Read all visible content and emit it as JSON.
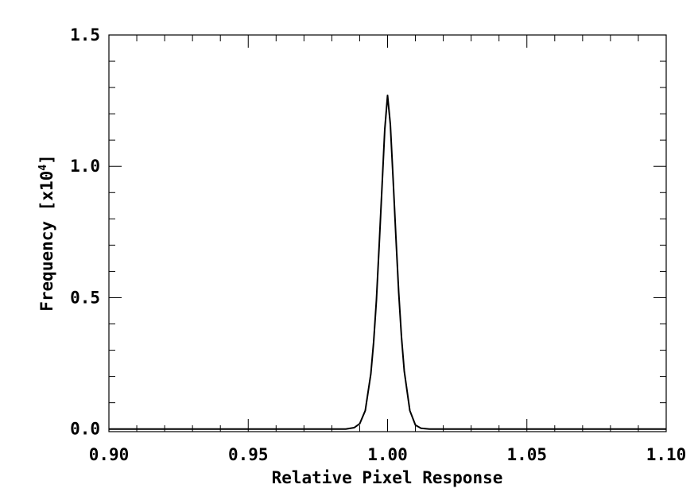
{
  "chart_data": {
    "type": "line",
    "xlabel": "Relative Pixel Response",
    "ylabel_main": "Frequency [x10",
    "ylabel_exp": "4",
    "ylabel_close": "]",
    "xlim": [
      0.9,
      1.1
    ],
    "ylim": [
      -0.01,
      1.5
    ],
    "x_ticks": [
      0.9,
      0.95,
      1.0,
      1.05,
      1.1
    ],
    "x_tick_labels": [
      "0.90",
      "0.95",
      "1.00",
      "1.05",
      "1.10"
    ],
    "x_minor_step": 0.01,
    "y_ticks": [
      0.0,
      0.5,
      1.0,
      1.5
    ],
    "y_tick_labels": [
      "0.0",
      "0.5",
      "1.0",
      "1.5"
    ],
    "y_minor_step": 0.1,
    "grid": false,
    "line_color": "#000000",
    "series": [
      {
        "x": [
          0.98,
          0.985,
          0.988,
          0.99,
          0.992,
          0.994,
          0.995,
          0.996,
          0.997,
          0.998,
          0.999,
          1.0,
          1.001,
          1.002,
          1.003,
          1.004,
          1.005,
          1.006,
          1.008,
          1.01,
          1.012,
          1.015,
          1.02
        ],
        "y": [
          0.0,
          0.0,
          0.005,
          0.02,
          0.07,
          0.21,
          0.33,
          0.49,
          0.7,
          0.92,
          1.14,
          1.27,
          1.16,
          0.95,
          0.73,
          0.52,
          0.35,
          0.22,
          0.07,
          0.015,
          0.003,
          0.0,
          0.0
        ]
      }
    ]
  }
}
